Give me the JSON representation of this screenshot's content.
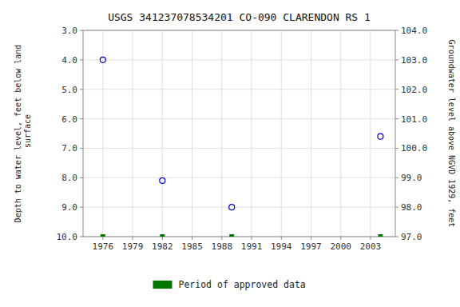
{
  "chart_data": {
    "type": "scatter",
    "title": "USGS 341237078534201 CO-090 CLARENDON RS 1",
    "y_label": "Depth to water level, feet below land\n surface",
    "y2_label": "Groundwater level above NGVD 1929, feet",
    "x": [
      1976,
      1982,
      1989,
      2004
    ],
    "series": [
      {
        "color": "#0000cc",
        "marker": "circle-open",
        "values": [
          4.0,
          8.1,
          9.0,
          6.6
        ]
      },
      {
        "name": "Period of approved data",
        "color": "#007700",
        "marker": "square",
        "values": [
          10.0,
          10.0,
          10.0,
          10.0
        ]
      }
    ],
    "xlim": [
      1974.0,
      2005.5
    ],
    "xticks": [
      1976,
      1979,
      1982,
      1985,
      1988,
      1991,
      1994,
      1997,
      2000,
      2003
    ],
    "ylim": [
      10.0,
      3.0
    ],
    "yticks": [
      {
        "value": 3.0,
        "label": "3.0"
      },
      {
        "value": 4.0,
        "label": "4.0"
      },
      {
        "value": 5.0,
        "label": "5.0"
      },
      {
        "value": 6.0,
        "label": "6.0"
      },
      {
        "value": 7.0,
        "label": "7.0"
      },
      {
        "value": 8.0,
        "label": "8.0"
      },
      {
        "value": 9.0,
        "label": "9.0"
      },
      {
        "value": 10.0,
        "label": "10.0"
      }
    ],
    "y2lim": [
      97.0,
      104.0
    ],
    "y2ticks": [
      {
        "value": 104.0,
        "label": "104.0"
      },
      {
        "value": 103.0,
        "label": "103.0"
      },
      {
        "value": 102.0,
        "label": "102.0"
      },
      {
        "value": 101.0,
        "label": "101.0"
      },
      {
        "value": 100.0,
        "label": "100.0"
      },
      {
        "value": 99.0,
        "label": "99.0"
      },
      {
        "value": 98.0,
        "label": "98.0"
      },
      {
        "value": 97.0,
        "label": "97.0"
      }
    ],
    "grid": true,
    "legend": "bottom"
  }
}
